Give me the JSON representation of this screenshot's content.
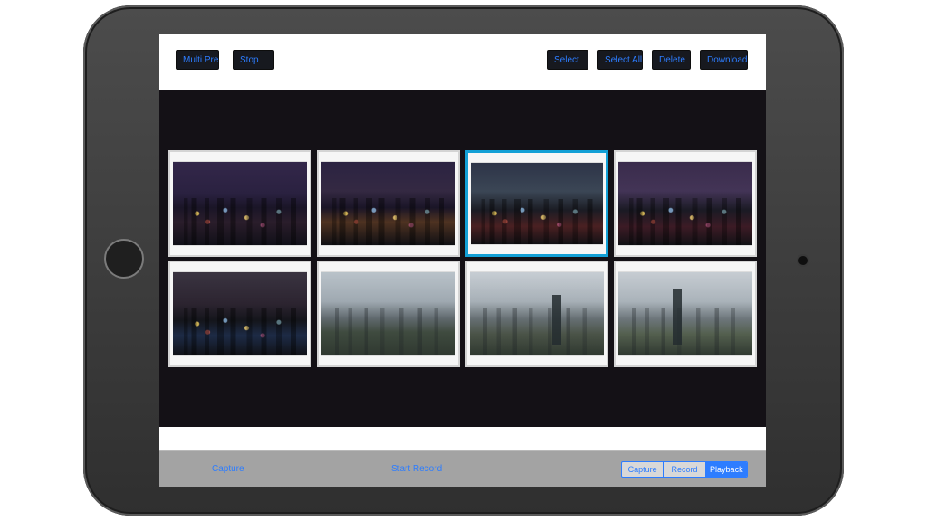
{
  "toolbar": {
    "left": [
      {
        "name": "multi-pre-button",
        "label": "Multi Pre"
      },
      {
        "name": "stop-button",
        "label": "Stop"
      }
    ],
    "right": [
      {
        "name": "select-button",
        "label": "Select"
      },
      {
        "name": "select-all-button",
        "label": "Select All"
      },
      {
        "name": "delete-button",
        "label": "Delete"
      },
      {
        "name": "download-button",
        "label": "Download"
      }
    ]
  },
  "gallery": {
    "items": [
      {
        "name": "thumbnail-1",
        "style": "night-a",
        "selected": false
      },
      {
        "name": "thumbnail-2",
        "style": "night-b",
        "selected": false
      },
      {
        "name": "thumbnail-3",
        "style": "night-c",
        "selected": true
      },
      {
        "name": "thumbnail-4",
        "style": "night-d",
        "selected": false
      },
      {
        "name": "thumbnail-5",
        "style": "night-e",
        "selected": false
      },
      {
        "name": "thumbnail-6",
        "style": "day-a",
        "selected": false
      },
      {
        "name": "thumbnail-7",
        "style": "day-b",
        "selected": false
      },
      {
        "name": "thumbnail-8",
        "style": "day-c",
        "selected": false
      }
    ]
  },
  "bottom_bar": {
    "capture_label": "Capture",
    "start_record_label": "Start Record",
    "mode_tabs": [
      {
        "label": "Capture",
        "active": false
      },
      {
        "label": "Record",
        "active": false
      },
      {
        "label": "Playback",
        "active": true
      }
    ]
  },
  "colors": {
    "accent": "#2d7dff",
    "selected_border": "#13a0d6",
    "content_background": "#141116",
    "bottom_bar": "#a3a3a3"
  }
}
